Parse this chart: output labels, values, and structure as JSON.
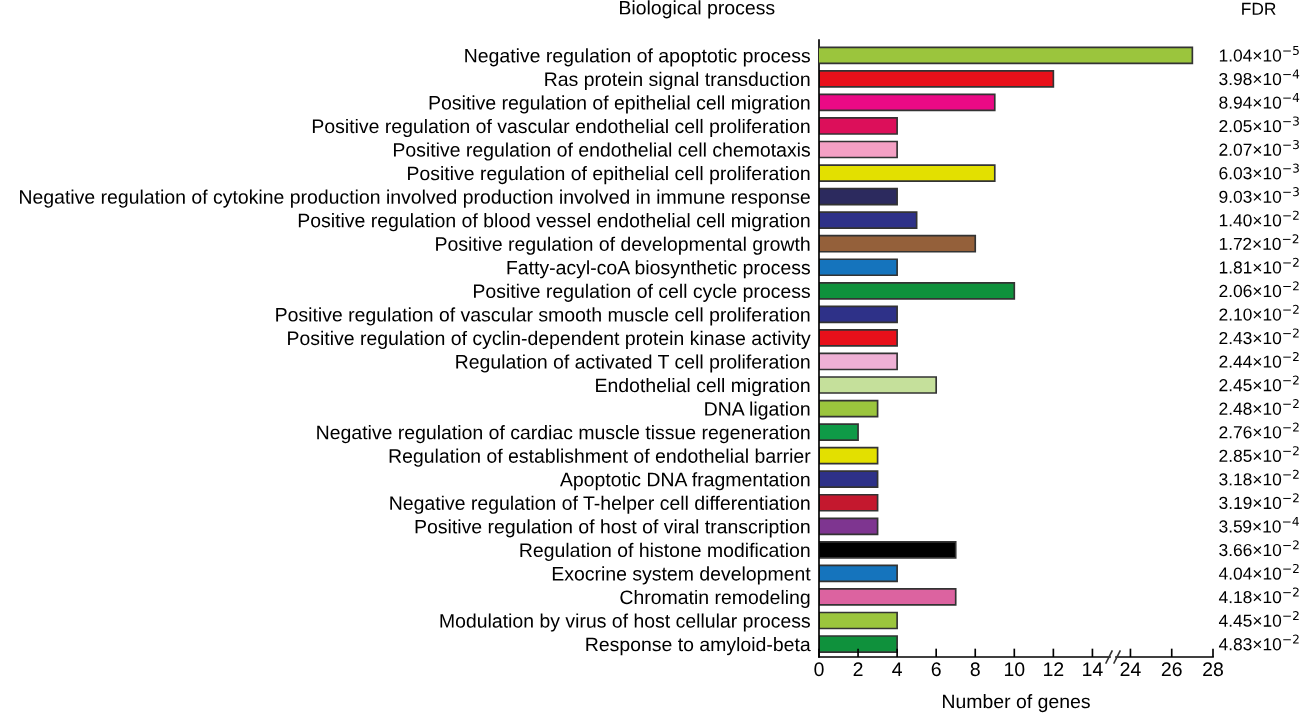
{
  "chart_data": [
    {
      "type": "bar",
      "orientation": "horizontal",
      "ylabel": "Biological process",
      "xlabel": "Number of genes",
      "categories": [
        "Negative regulation of apoptotic process",
        "Ras protein signal transduction",
        "Positive regulation of epithelial cell migration",
        "Positive regulation of vascular endothelial cell proliferation",
        "Positive regulation of endothelial cell chemotaxis",
        "Positive regulation of epithelial cell proliferation",
        "Negative regulation of cytokine production involved production involved in immune response",
        "Positive regulation of blood vessel endothelial cell migration",
        "Positive regulation of developmental growth",
        "Fatty-acyl-coA biosynthetic process",
        "Positive regulation of cell cycle process",
        "Positive regulation of vascular smooth muscle cell proliferation",
        "Positive regulation of cyclin-dependent protein kinase activity",
        "Regulation of activated T cell proliferation",
        "Endothelial cell migration",
        "DNA ligation",
        "Negative regulation of cardiac muscle tissue regeneration",
        "Regulation of establishment of endothelial barrier",
        "Apoptotic DNA fragmentation",
        "Negative regulation of T-helper cell differentiation",
        "Positive regulation of host of viral transcription",
        "Regulation of histone modification",
        "Exocrine system development",
        "Chromatin remodeling",
        "Modulation by virus of host cellular process",
        "Response to amyloid-beta"
      ],
      "values": [
        null,
        12,
        9,
        4,
        4,
        9,
        4,
        5,
        8,
        4,
        10,
        4,
        4,
        4,
        6,
        3,
        2,
        3,
        3,
        3,
        3,
        7,
        4,
        7,
        4,
        4
      ],
      "colors": [
        "#9bc53d",
        "#e8101a",
        "#ea0a85",
        "#dc0f5a",
        "#f4a0c4",
        "#e3e000",
        "#2c2a5e",
        "#2e3188",
        "#94603a",
        "#1574bd",
        "#0f913c",
        "#2e3188",
        "#e8101a",
        "#efb0d5",
        "#c5e09b",
        "#9bc53d",
        "#0f9a47",
        "#e3e000",
        "#2e3188",
        "#c4182e",
        "#7e3590",
        "#000000",
        "#1574bd",
        "#dc63a0",
        "#9bc53d",
        "#0f913c"
      ],
      "xlim": [
        0,
        14.9
      ],
      "xticks": [
        0,
        2,
        4,
        6,
        8,
        10,
        12,
        14
      ],
      "grid": false
    },
    {
      "type": "bar",
      "orientation": "horizontal",
      "y2label": "FDR",
      "categories": [
        "1.04×10$^{−5}$",
        "3.98×10$^{−4}$",
        "8.94×10$^{−4}$",
        "2.05×10$^{−3}$",
        "2.07×10$^{−3}$",
        "6.03×10$^{−3}$",
        "9.03×10$^{−3}$",
        "1.40×10$^{−2}$",
        "1.72×10$^{−2}$",
        "1.81×10$^{−2}$",
        "2.06×10$^{−2}$",
        "2.10×10$^{−2}$",
        "2.43×10$^{−2}$",
        "2.44×10$^{−2}$",
        "2.45×10$^{−2}$",
        "2.48×10$^{−2}$",
        "2.76×10$^{−2}$",
        "2.85×10$^{−2}$",
        "3.18×10$^{−2}$",
        "3.19×10$^{−2}$",
        "3.59×10$^{−4}$",
        "3.66×10$^{−2}$",
        "4.04×10$^{−2}$",
        "4.18×10$^{−2}$",
        "4.45×10$^{−2}$",
        "4.83×10$^{−2}$"
      ],
      "values": [
        27,
        null,
        null,
        null,
        null,
        null,
        null,
        null,
        null,
        null,
        null,
        null,
        null,
        null,
        null,
        null,
        null,
        null,
        null,
        null,
        null,
        null,
        null,
        null,
        null,
        null
      ],
      "colors": [
        "#9bc53d",
        "#e8101a",
        "#ea0a85",
        "#dc0f5a",
        "#f4a0c4",
        "#e3e000",
        "#2c2a5e",
        "#2e3188",
        "#94603a",
        "#1574bd",
        "#0f913c",
        "#2e3188",
        "#e8101a",
        "#efb0d5",
        "#c5e09b",
        "#9bc53d",
        "#0f9a47",
        "#e3e000",
        "#2e3188",
        "#c4182e",
        "#7e3590",
        "#000000",
        "#1574bd",
        "#dc63a0",
        "#9bc53d",
        "#0f913c"
      ],
      "xlim": [
        23.3,
        28
      ],
      "xticks": [
        24,
        26,
        28
      ],
      "grid": false
    }
  ]
}
